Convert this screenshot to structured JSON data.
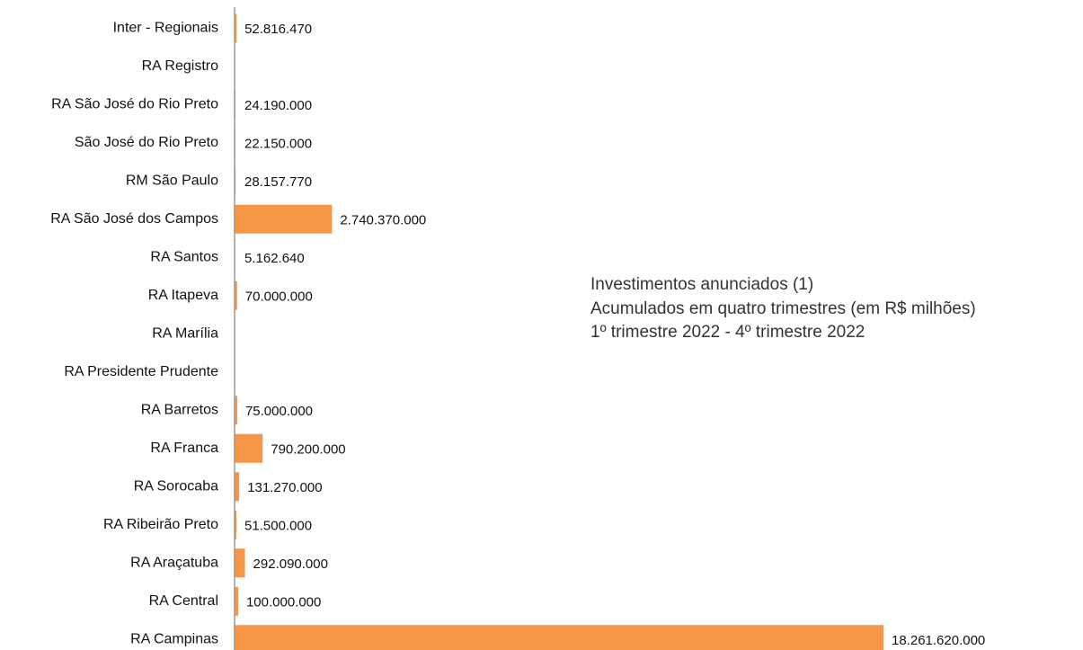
{
  "chart_data": {
    "type": "hbar",
    "title": [
      "Investimentos anunciados (1)",
      "Acumulados em quatro trimestres (em R$ milhões)",
      "1º  trimestre 2022 - 4º  trimestre 2022"
    ],
    "categories": [
      "Inter - Regionais",
      "RA Registro",
      "RA São José do Rio Preto",
      "São José do Rio Preto ",
      "RM São Paulo",
      "RA São José dos Campos",
      "RA Santos",
      "RA Itapeva",
      "RA Marília",
      "RA Presidente Prudente",
      "RA Barretos",
      "RA Franca",
      "RA Sorocaba",
      "RA Ribeirão Preto",
      "RA Araçatuba",
      "RA Central",
      "RA Campinas"
    ],
    "values": [
      52816470,
      null,
      24190000,
      22150000,
      28157770,
      2740370000,
      5162640,
      70000000,
      null,
      null,
      75000000,
      790200000,
      131270000,
      51500000,
      292090000,
      100000000,
      18261620000
    ],
    "value_labels": [
      "52.816.470",
      null,
      "24.190.000",
      "22.150.000",
      "28.157.770",
      "2.740.370.000",
      "5.162.640",
      "70.000.000",
      null,
      null,
      "75.000.000",
      "790.200.000",
      "131.270.000",
      "51.500.000",
      "292.090.000",
      "100.000.000",
      "18.261.620.000"
    ],
    "color": "#f79646"
  }
}
